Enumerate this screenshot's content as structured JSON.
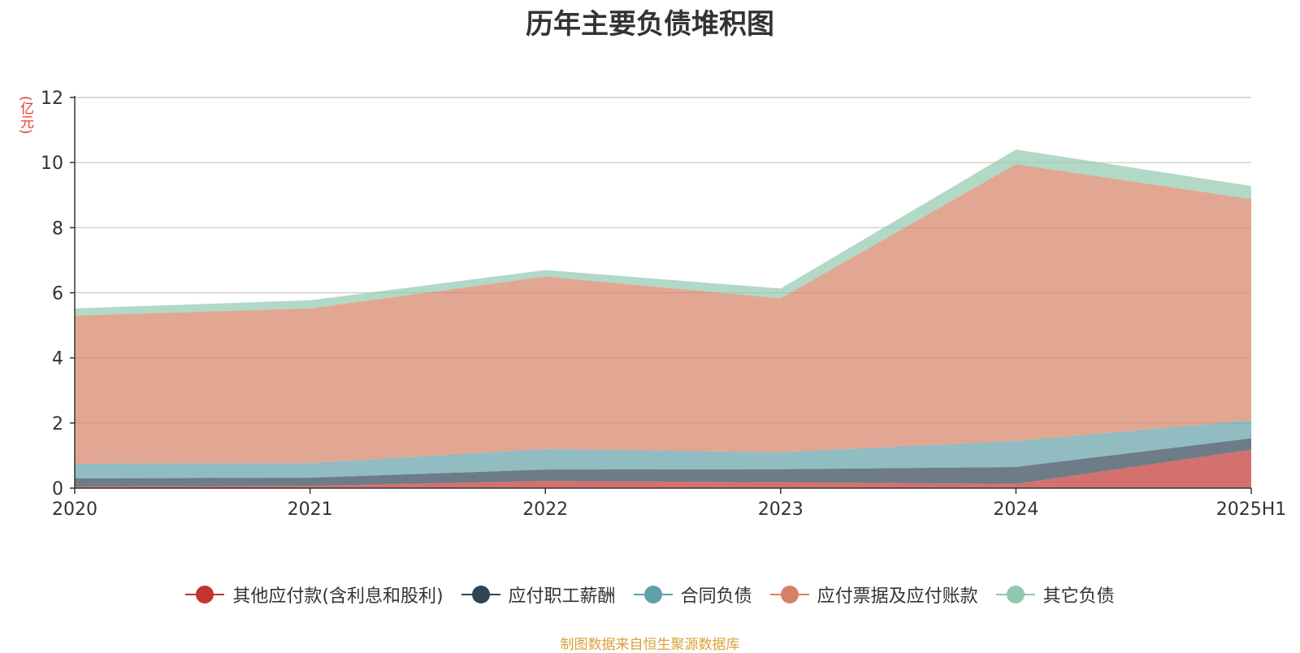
{
  "chart_data": {
    "type": "area",
    "title": "历年主要负债堆积图",
    "ylabel": "(亿元)",
    "xlabel": "",
    "categories": [
      "2020",
      "2021",
      "2022",
      "2023",
      "2024",
      "2025H1"
    ],
    "ylim": [
      0,
      12
    ],
    "yticks": [
      0,
      2,
      4,
      6,
      8,
      10,
      12
    ],
    "stacked": true,
    "grid": true,
    "legend_position": "bottom",
    "series": [
      {
        "name": "其他应付款(含利息和股利)",
        "color": "#c23531",
        "values": [
          0.05,
          0.07,
          0.22,
          0.18,
          0.13,
          1.18
        ]
      },
      {
        "name": "应付职工薪酬",
        "color": "#2f4554",
        "values": [
          0.25,
          0.25,
          0.35,
          0.4,
          0.52,
          0.35
        ]
      },
      {
        "name": "合同负债",
        "color": "#61a0a8",
        "values": [
          0.45,
          0.45,
          0.63,
          0.52,
          0.8,
          0.55
        ]
      },
      {
        "name": "应付票据及应付账款",
        "color": "#d48265",
        "values": [
          4.55,
          4.75,
          5.3,
          4.73,
          8.5,
          6.8
        ]
      },
      {
        "name": "其它负债",
        "color": "#91c7ae",
        "values": [
          0.22,
          0.25,
          0.2,
          0.3,
          0.45,
          0.4
        ]
      }
    ]
  },
  "source": "制图数据来自恒生聚源数据库"
}
